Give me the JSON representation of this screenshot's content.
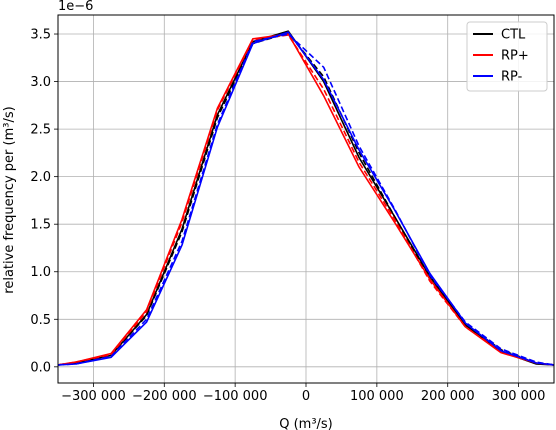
{
  "chart_data": {
    "type": "line",
    "xlabel": "Q (m³/s)",
    "ylabel": "relative frequency per (m³/s)",
    "offset_text": "1e−6",
    "xlim": [
      -350000,
      350000
    ],
    "ylim": [
      -0.17,
      3.7
    ],
    "grid": true,
    "legend_position": "top-right",
    "x_ticks": [
      {
        "value": -300000,
        "label": "−300 000"
      },
      {
        "value": -200000,
        "label": "−200 000"
      },
      {
        "value": -100000,
        "label": "−100 000"
      },
      {
        "value": 0,
        "label": "0"
      },
      {
        "value": 100000,
        "label": "100 000"
      },
      {
        "value": 200000,
        "label": "200 000"
      },
      {
        "value": 300000,
        "label": "300 000"
      }
    ],
    "y_ticks": [
      {
        "value": 0.0,
        "label": "0.0"
      },
      {
        "value": 0.5,
        "label": "0.5"
      },
      {
        "value": 1.0,
        "label": "1.0"
      },
      {
        "value": 1.5,
        "label": "1.5"
      },
      {
        "value": 2.0,
        "label": "2.0"
      },
      {
        "value": 2.5,
        "label": "2.5"
      },
      {
        "value": 3.0,
        "label": "3.0"
      },
      {
        "value": 3.5,
        "label": "3.5"
      }
    ],
    "series": [
      {
        "name": "CTL",
        "color": "#000000",
        "style": "solid",
        "in_legend": true,
        "x": [
          -350000,
          -325000,
          -275000,
          -225000,
          -175000,
          -125000,
          -75000,
          -25000,
          25000,
          75000,
          125000,
          175000,
          225000,
          275000,
          325000,
          350000
        ],
        "y": [
          0.02,
          0.04,
          0.12,
          0.55,
          1.45,
          2.65,
          3.42,
          3.53,
          3.0,
          2.2,
          1.58,
          0.95,
          0.44,
          0.16,
          0.03,
          0.02
        ]
      },
      {
        "name": "",
        "color": "#000000",
        "style": "dashed",
        "in_legend": false,
        "x": [
          -350000,
          -325000,
          -275000,
          -225000,
          -175000,
          -125000,
          -75000,
          -25000,
          25000,
          75000,
          125000,
          175000,
          225000,
          275000,
          325000,
          350000
        ],
        "y": [
          0.02,
          0.04,
          0.12,
          0.54,
          1.42,
          2.62,
          3.4,
          3.51,
          3.05,
          2.25,
          1.58,
          0.92,
          0.45,
          0.18,
          0.04,
          0.02
        ]
      },
      {
        "name": "RP+",
        "color": "#ff0000",
        "style": "solid",
        "in_legend": true,
        "x": [
          -350000,
          -325000,
          -275000,
          -225000,
          -175000,
          -125000,
          -75000,
          -25000,
          25000,
          75000,
          125000,
          175000,
          225000,
          275000,
          325000,
          350000
        ],
        "y": [
          0.02,
          0.05,
          0.14,
          0.6,
          1.55,
          2.72,
          3.45,
          3.5,
          2.85,
          2.1,
          1.52,
          0.92,
          0.42,
          0.15,
          0.04,
          0.02
        ]
      },
      {
        "name": "",
        "color": "#ff0000",
        "style": "dashed",
        "in_legend": false,
        "x": [
          -350000,
          -325000,
          -275000,
          -225000,
          -175000,
          -125000,
          -75000,
          -25000,
          25000,
          75000,
          125000,
          175000,
          225000,
          275000,
          325000,
          350000
        ],
        "y": [
          0.02,
          0.05,
          0.13,
          0.58,
          1.52,
          2.7,
          3.44,
          3.49,
          2.92,
          2.15,
          1.55,
          0.9,
          0.42,
          0.16,
          0.04,
          0.02
        ]
      },
      {
        "name": "RP-",
        "color": "#0000ff",
        "style": "solid",
        "in_legend": true,
        "x": [
          -350000,
          -325000,
          -275000,
          -225000,
          -175000,
          -125000,
          -75000,
          -25000,
          25000,
          75000,
          125000,
          175000,
          225000,
          275000,
          325000,
          350000
        ],
        "y": [
          0.02,
          0.03,
          0.1,
          0.47,
          1.28,
          2.52,
          3.4,
          3.52,
          3.02,
          2.28,
          1.65,
          0.98,
          0.46,
          0.17,
          0.04,
          0.02
        ]
      },
      {
        "name": "",
        "color": "#0000ff",
        "style": "dashed",
        "in_legend": false,
        "x": [
          -350000,
          -325000,
          -275000,
          -225000,
          -175000,
          -125000,
          -75000,
          -25000,
          25000,
          75000,
          125000,
          175000,
          225000,
          275000,
          325000,
          350000
        ],
        "y": [
          0.02,
          0.03,
          0.11,
          0.5,
          1.32,
          2.55,
          3.42,
          3.5,
          3.15,
          2.32,
          1.66,
          0.96,
          0.47,
          0.19,
          0.05,
          0.02
        ]
      }
    ]
  }
}
